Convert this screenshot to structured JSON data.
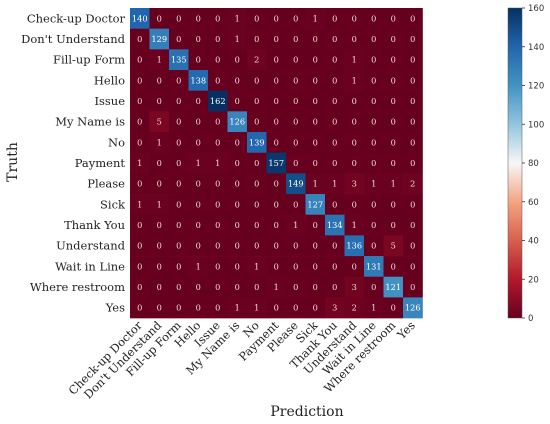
{
  "chart_data": {
    "type": "heatmap",
    "xlabel": "Prediction",
    "ylabel": "Truth",
    "classes": [
      "Check-up Doctor",
      "Don't Understand",
      "Fill-up Form",
      "Hello",
      "Issue",
      "My Name is",
      "No",
      "Payment",
      "Please",
      "Sick",
      "Thank You",
      "Understand",
      "Wait in Line",
      "Where restroom",
      "Yes"
    ],
    "matrix": [
      [
        140,
        0,
        0,
        0,
        0,
        1,
        0,
        0,
        0,
        1,
        0,
        0,
        0,
        0,
        0
      ],
      [
        0,
        129,
        0,
        0,
        0,
        1,
        0,
        0,
        0,
        0,
        0,
        0,
        0,
        0,
        0
      ],
      [
        0,
        1,
        135,
        0,
        0,
        0,
        2,
        0,
        0,
        0,
        0,
        1,
        0,
        0,
        0
      ],
      [
        0,
        0,
        0,
        138,
        0,
        0,
        0,
        0,
        0,
        0,
        0,
        1,
        0,
        0,
        0
      ],
      [
        0,
        0,
        0,
        0,
        162,
        0,
        0,
        0,
        0,
        0,
        0,
        0,
        0,
        0,
        0
      ],
      [
        0,
        5,
        0,
        0,
        0,
        126,
        0,
        0,
        0,
        0,
        0,
        0,
        0,
        0,
        0
      ],
      [
        0,
        1,
        0,
        0,
        0,
        0,
        139,
        0,
        0,
        0,
        0,
        0,
        0,
        0,
        0
      ],
      [
        1,
        0,
        0,
        1,
        1,
        0,
        0,
        157,
        0,
        0,
        0,
        0,
        0,
        0,
        0
      ],
      [
        0,
        0,
        0,
        0,
        0,
        0,
        0,
        0,
        149,
        1,
        1,
        3,
        1,
        1,
        2
      ],
      [
        1,
        1,
        0,
        0,
        0,
        0,
        0,
        0,
        0,
        127,
        0,
        0,
        0,
        0,
        0
      ],
      [
        0,
        0,
        0,
        0,
        0,
        0,
        0,
        0,
        1,
        0,
        134,
        1,
        0,
        0,
        0
      ],
      [
        0,
        0,
        0,
        0,
        0,
        0,
        0,
        0,
        0,
        0,
        0,
        136,
        0,
        5,
        0
      ],
      [
        0,
        0,
        0,
        1,
        0,
        0,
        1,
        0,
        0,
        0,
        0,
        0,
        131,
        0,
        0
      ],
      [
        0,
        0,
        0,
        0,
        0,
        0,
        0,
        1,
        0,
        0,
        0,
        3,
        0,
        121,
        0
      ],
      [
        0,
        0,
        0,
        0,
        0,
        1,
        1,
        0,
        0,
        0,
        3,
        2,
        1,
        0,
        126
      ]
    ],
    "colorbar": {
      "min": 0,
      "max": 160,
      "ticks": [
        0,
        20,
        40,
        60,
        80,
        100,
        120,
        140,
        160
      ],
      "colormap": "RdBu"
    },
    "grid": false,
    "legend": "colorbar-right"
  }
}
